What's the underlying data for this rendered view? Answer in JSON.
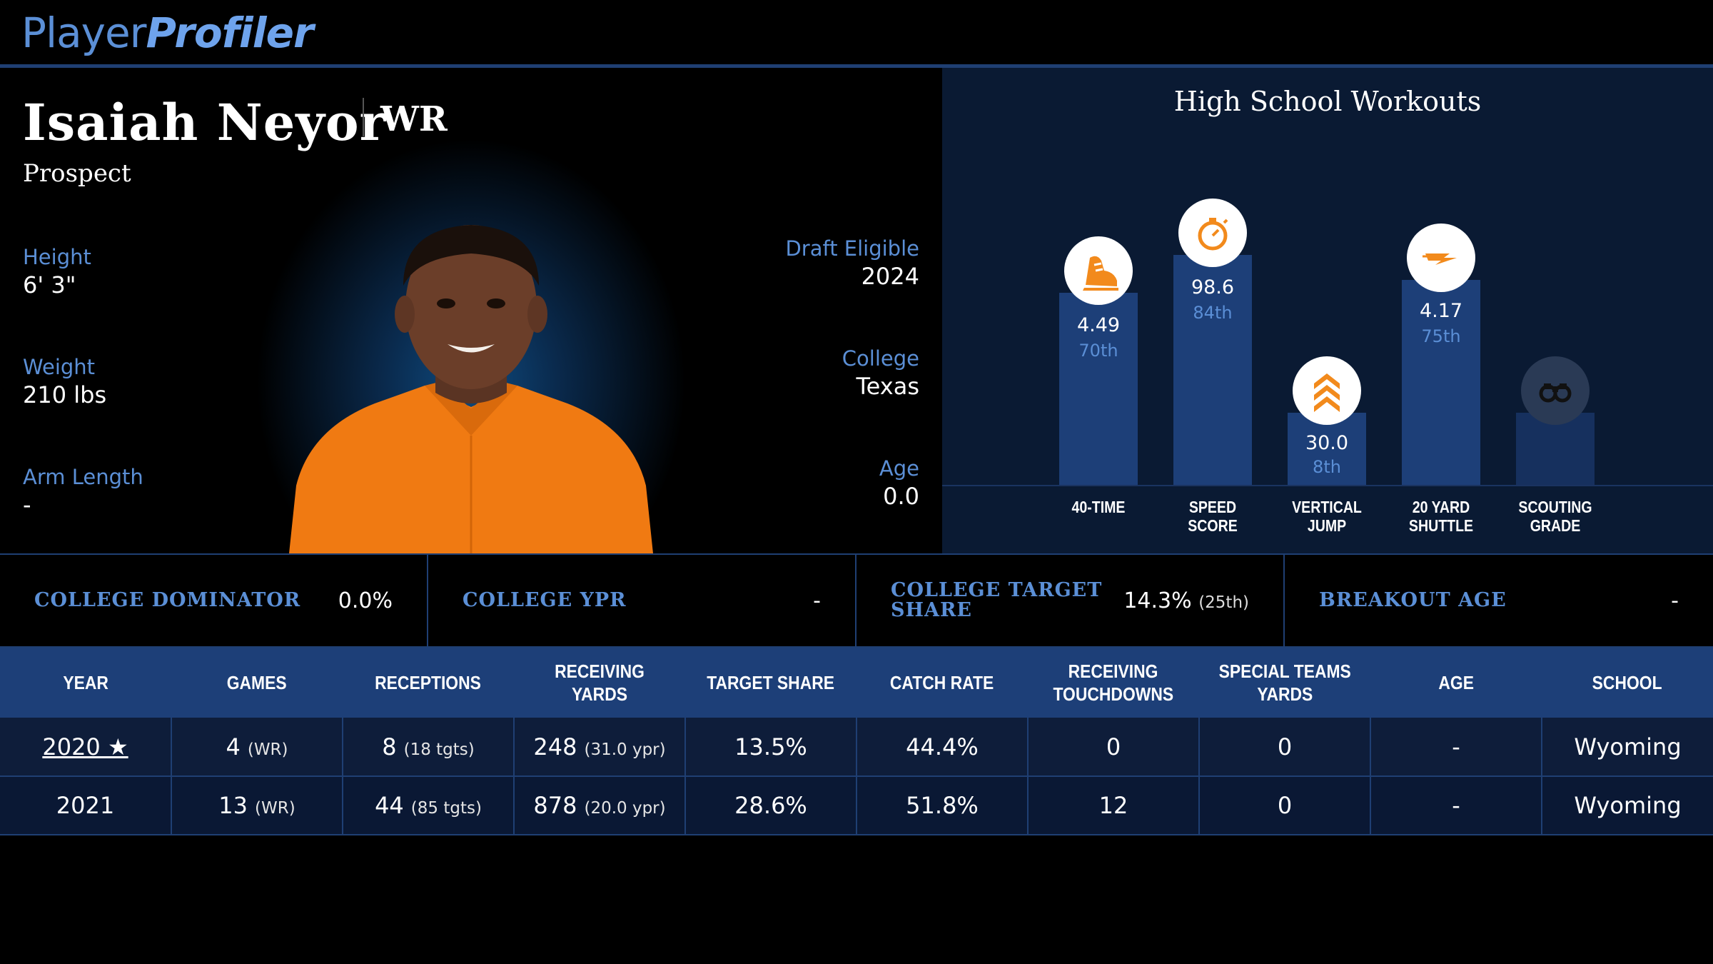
{
  "brand": {
    "player": "Player",
    "profiler": "Profiler"
  },
  "player": {
    "name": "Isaiah Neyor",
    "position": "WR",
    "status": "Prospect",
    "height_label": "Height",
    "height": "6' 3\"",
    "weight_label": "Weight",
    "weight": "210 lbs",
    "arm_label": "Arm Length",
    "arm": "-",
    "draft_label": "Draft Eligible",
    "draft": "2024",
    "college_label": "College",
    "college": "Texas",
    "age_label": "Age",
    "age": "0.0"
  },
  "workouts": {
    "title": "High School Workouts",
    "items": [
      {
        "label_1": "40-TIME",
        "label_2": "",
        "value": "4.49",
        "percentile": "70th",
        "icon": "running-shoe-icon"
      },
      {
        "label_1": "SPEED",
        "label_2": "SCORE",
        "value": "98.6",
        "percentile": "84th",
        "icon": "stopwatch-icon"
      },
      {
        "label_1": "VERTICAL",
        "label_2": "JUMP",
        "value": "30.0",
        "percentile": "8th",
        "icon": "chevrons-up-icon"
      },
      {
        "label_1": "20 YARD",
        "label_2": "SHUTTLE",
        "value": "4.17",
        "percentile": "75th",
        "icon": "lightning-icon"
      },
      {
        "label_1": "SCOUTING",
        "label_2": "GRADE",
        "value": "",
        "percentile": "",
        "icon": "binoculars-icon"
      }
    ],
    "colors": {
      "icon": "#f28a1c",
      "bar": "#1d3f78"
    }
  },
  "metrics": [
    {
      "label": "COLLEGE DOMINATOR",
      "label_2": "",
      "value": "0.0%",
      "sub": ""
    },
    {
      "label": "COLLEGE YPR",
      "label_2": "",
      "value": "-",
      "sub": ""
    },
    {
      "label": "COLLEGE TARGET",
      "label_2": "SHARE",
      "value": "14.3%",
      "sub": "(25th)"
    },
    {
      "label": "BREAKOUT AGE",
      "label_2": "",
      "value": "-",
      "sub": ""
    }
  ],
  "table": {
    "headers": [
      {
        "l1": "YEAR",
        "l2": ""
      },
      {
        "l1": "GAMES",
        "l2": ""
      },
      {
        "l1": "RECEPTIONS",
        "l2": ""
      },
      {
        "l1": "RECEIVING YARDS",
        "l2": ""
      },
      {
        "l1": "TARGET SHARE",
        "l2": ""
      },
      {
        "l1": "CATCH RATE",
        "l2": ""
      },
      {
        "l1": "RECEIVING",
        "l2": "TOUCHDOWNS"
      },
      {
        "l1": "SPECIAL TEAMS",
        "l2": "YARDS"
      },
      {
        "l1": "AGE",
        "l2": ""
      },
      {
        "l1": "SCHOOL",
        "l2": ""
      }
    ],
    "rows": [
      {
        "year": "2020 ★",
        "games": "4",
        "games_pos": "(WR)",
        "rec": "8",
        "tgts": "(18 tgts)",
        "yards": "248",
        "ypr": "(31.0 ypr)",
        "target_share": "13.5%",
        "catch_rate": "44.4%",
        "tds": "0",
        "st_yards": "0",
        "age": "-",
        "school": "Wyoming"
      },
      {
        "year": "2021",
        "games": "13",
        "games_pos": "(WR)",
        "rec": "44",
        "tgts": "(85 tgts)",
        "yards": "878",
        "ypr": "(20.0 ypr)",
        "target_share": "28.6%",
        "catch_rate": "51.8%",
        "tds": "12",
        "st_yards": "0",
        "age": "-",
        "school": "Wyoming"
      }
    ]
  }
}
